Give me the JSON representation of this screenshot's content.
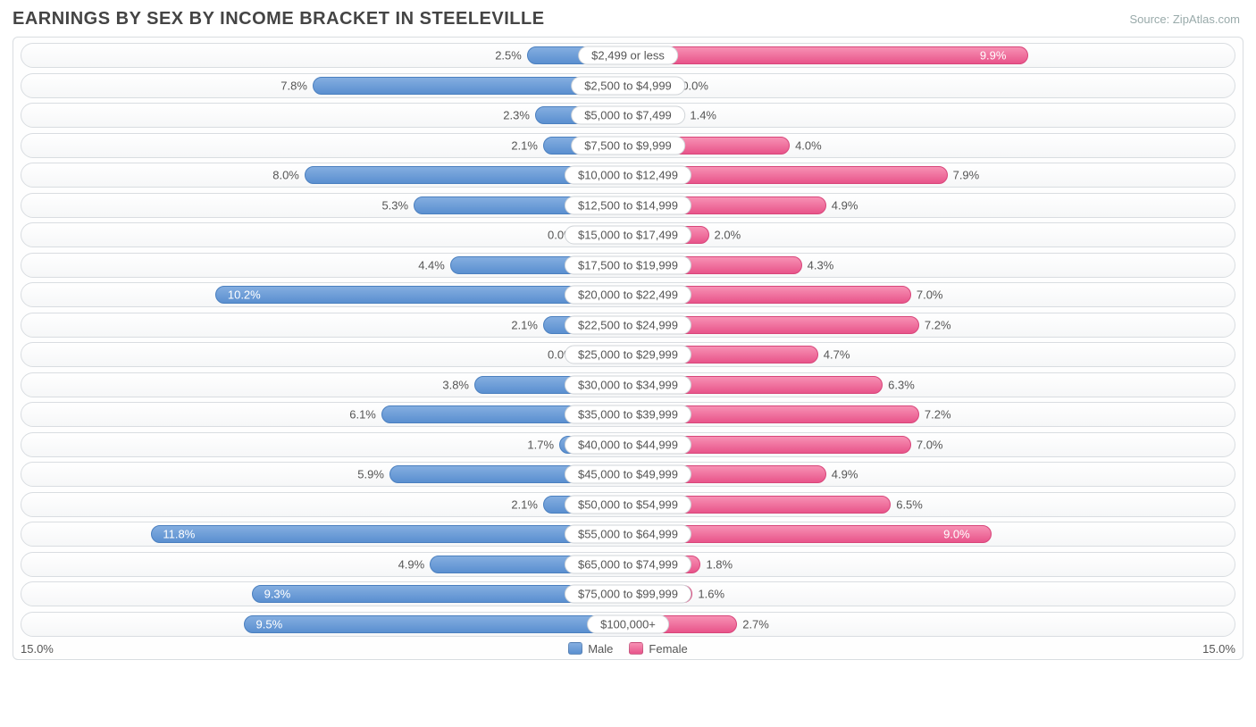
{
  "title": "EARNINGS BY SEX BY INCOME BRACKET IN STEELEVILLE",
  "source": "Source: ZipAtlas.com",
  "axis_max": 15.0,
  "axis_left_label": "15.0%",
  "axis_right_label": "15.0%",
  "legend": {
    "male": "Male",
    "female": "Female"
  },
  "colors": {
    "male_top": "#84aee0",
    "male_bottom": "#5a8fd0",
    "male_border": "#4a7fbf",
    "female_top": "#f791b4",
    "female_bottom": "#e8548a",
    "female_border": "#d8457a",
    "row_border": "#d9dde1",
    "text": "#555555",
    "title": "#444444",
    "source": "#99aaaa",
    "background": "#ffffff"
  },
  "label_inside_threshold": 9.0,
  "rows": [
    {
      "category": "$2,499 or less",
      "male": 2.5,
      "female": 9.9
    },
    {
      "category": "$2,500 to $4,999",
      "male": 7.8,
      "female": 0.0
    },
    {
      "category": "$5,000 to $7,499",
      "male": 2.3,
      "female": 1.4
    },
    {
      "category": "$7,500 to $9,999",
      "male": 2.1,
      "female": 4.0
    },
    {
      "category": "$10,000 to $12,499",
      "male": 8.0,
      "female": 7.9
    },
    {
      "category": "$12,500 to $14,999",
      "male": 5.3,
      "female": 4.9
    },
    {
      "category": "$15,000 to $17,499",
      "male": 0.0,
      "female": 2.0
    },
    {
      "category": "$17,500 to $19,999",
      "male": 4.4,
      "female": 4.3
    },
    {
      "category": "$20,000 to $22,499",
      "male": 10.2,
      "female": 7.0
    },
    {
      "category": "$22,500 to $24,999",
      "male": 2.1,
      "female": 7.2
    },
    {
      "category": "$25,000 to $29,999",
      "male": 0.0,
      "female": 4.7
    },
    {
      "category": "$30,000 to $34,999",
      "male": 3.8,
      "female": 6.3
    },
    {
      "category": "$35,000 to $39,999",
      "male": 6.1,
      "female": 7.2
    },
    {
      "category": "$40,000 to $44,999",
      "male": 1.7,
      "female": 7.0
    },
    {
      "category": "$45,000 to $49,999",
      "male": 5.9,
      "female": 4.9
    },
    {
      "category": "$50,000 to $54,999",
      "male": 2.1,
      "female": 6.5
    },
    {
      "category": "$55,000 to $64,999",
      "male": 11.8,
      "female": 9.0
    },
    {
      "category": "$65,000 to $74,999",
      "male": 4.9,
      "female": 1.8
    },
    {
      "category": "$75,000 to $99,999",
      "male": 9.3,
      "female": 1.6
    },
    {
      "category": "$100,000+",
      "male": 9.5,
      "female": 2.7
    }
  ]
}
